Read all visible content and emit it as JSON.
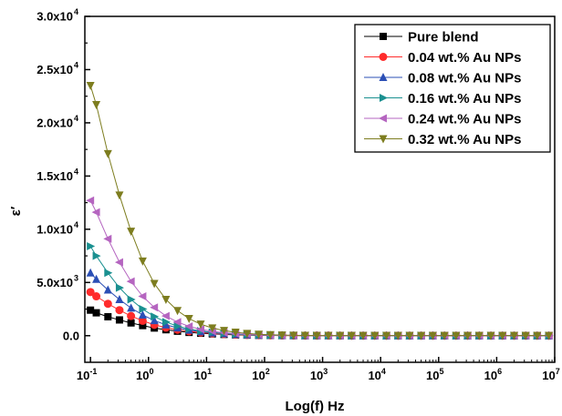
{
  "chart_data": {
    "type": "line",
    "title": "",
    "xlabel": "Log(f) Hz",
    "ylabel": "ε′",
    "x_scale": "log",
    "xlim": [
      0.08,
      10000000
    ],
    "ylim": [
      -2500,
      30000
    ],
    "grid": false,
    "legend_position": "top-right",
    "x_ticks": [
      {
        "value": 0.1,
        "mantissa": "10",
        "exp": "-1"
      },
      {
        "value": 1,
        "mantissa": "10",
        "exp": "0"
      },
      {
        "value": 10,
        "mantissa": "10",
        "exp": "1"
      },
      {
        "value": 100,
        "mantissa": "10",
        "exp": "2"
      },
      {
        "value": 1000,
        "mantissa": "10",
        "exp": "3"
      },
      {
        "value": 10000,
        "mantissa": "10",
        "exp": "4"
      },
      {
        "value": 100000,
        "mantissa": "10",
        "exp": "5"
      },
      {
        "value": 1000000,
        "mantissa": "10",
        "exp": "6"
      },
      {
        "value": 10000000,
        "mantissa": "10",
        "exp": "7"
      }
    ],
    "y_ticks": [
      {
        "value": 0,
        "text": "0.0",
        "exp": ""
      },
      {
        "value": 5000,
        "text": "5.0x10",
        "exp": "3"
      },
      {
        "value": 10000,
        "text": "1.0x10",
        "exp": "4"
      },
      {
        "value": 15000,
        "text": "1.5x10",
        "exp": "4"
      },
      {
        "value": 20000,
        "text": "2.0x10",
        "exp": "4"
      },
      {
        "value": 25000,
        "text": "2.5x10",
        "exp": "4"
      },
      {
        "value": 30000,
        "text": "3.0x10",
        "exp": "4"
      }
    ],
    "x": [
      0.1,
      0.126,
      0.2,
      0.316,
      0.5,
      0.794,
      1.26,
      2,
      3.16,
      5,
      7.94,
      12.6,
      20,
      31.6,
      50,
      79.4,
      126,
      200,
      316,
      500,
      794,
      1260,
      2000,
      3160,
      5000,
      7940,
      12600,
      20000,
      31600,
      50000,
      79400,
      126000,
      200000,
      316000,
      500000,
      794000,
      1260000,
      2000000,
      3160000,
      5000000,
      7940000
    ],
    "series": [
      {
        "name": "Pure blend",
        "marker": "square",
        "color": "#000000",
        "values": [
          2400,
          2150,
          1780,
          1480,
          1200,
          950,
          720,
          560,
          420,
          310,
          230,
          170,
          120,
          80,
          55,
          35,
          25,
          15,
          10,
          8,
          6,
          5,
          4,
          4,
          4,
          3,
          3,
          3,
          3,
          3,
          3,
          3,
          3,
          3,
          3,
          3,
          3,
          3,
          3,
          3,
          3
        ]
      },
      {
        "name": "0.04 wt.% Au NPs",
        "marker": "circle",
        "color": "#ff2b2b",
        "values": [
          4100,
          3700,
          3000,
          2400,
          1850,
          1400,
          1020,
          760,
          560,
          410,
          300,
          220,
          155,
          105,
          72,
          48,
          32,
          22,
          15,
          11,
          8,
          7,
          6,
          5,
          5,
          5,
          5,
          5,
          5,
          5,
          5,
          5,
          5,
          5,
          5,
          5,
          5,
          5,
          5,
          5,
          5
        ]
      },
      {
        "name": "0.08 wt.% Au NPs",
        "marker": "triangle-up",
        "color": "#2b4fb5",
        "values": [
          5900,
          5300,
          4300,
          3400,
          2600,
          1950,
          1420,
          1020,
          740,
          530,
          380,
          270,
          190,
          130,
          88,
          58,
          40,
          27,
          18,
          13,
          10,
          8,
          7,
          6,
          6,
          6,
          6,
          6,
          6,
          6,
          6,
          6,
          6,
          6,
          6,
          6,
          6,
          6,
          6,
          6,
          6
        ]
      },
      {
        "name": "0.16 wt.% Au NPs",
        "marker": "triangle-right",
        "color": "#1a9090",
        "values": [
          8400,
          7500,
          5900,
          4500,
          3400,
          2500,
          1800,
          1280,
          900,
          630,
          440,
          310,
          215,
          145,
          98,
          65,
          44,
          30,
          20,
          14,
          10,
          8,
          7,
          6,
          6,
          6,
          6,
          6,
          6,
          6,
          6,
          6,
          6,
          6,
          6,
          6,
          6,
          6,
          6,
          6,
          6
        ]
      },
      {
        "name": "0.24 wt.% Au NPs",
        "marker": "triangle-left",
        "color": "#b565c0",
        "values": [
          12700,
          11600,
          9100,
          6900,
          5100,
          3700,
          2650,
          1850,
          1280,
          880,
          600,
          410,
          280,
          190,
          125,
          82,
          54,
          36,
          24,
          16,
          12,
          9,
          8,
          7,
          7,
          7,
          7,
          7,
          7,
          7,
          7,
          7,
          7,
          7,
          7,
          7,
          7,
          7,
          7,
          7,
          7
        ]
      },
      {
        "name": "0.32 wt.% Au NPs",
        "marker": "triangle-down",
        "color": "#7d7d1f",
        "values": [
          23500,
          21700,
          17100,
          13200,
          9800,
          7000,
          4900,
          3400,
          2350,
          1600,
          1080,
          720,
          480,
          320,
          210,
          135,
          88,
          58,
          38,
          25,
          17,
          12,
          10,
          8,
          8,
          8,
          8,
          8,
          8,
          8,
          8,
          8,
          8,
          8,
          8,
          8,
          8,
          8,
          8,
          8,
          8
        ]
      }
    ]
  }
}
